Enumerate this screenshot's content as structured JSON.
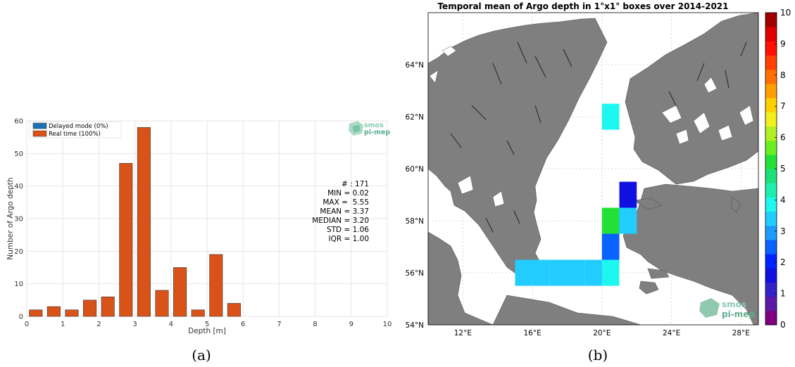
{
  "chart_data": [
    {
      "type": "bar",
      "panel_caption": "(a)",
      "xlabel": "Depth [m]",
      "ylabel": "Number of Argo depth",
      "xlim": [
        0,
        10
      ],
      "ylim": [
        0,
        60
      ],
      "x_ticks": [
        "0",
        "1",
        "2",
        "3",
        "4",
        "5",
        "6",
        "7",
        "8",
        "9",
        "10"
      ],
      "y_ticks": [
        "0",
        "10",
        "20",
        "30",
        "40",
        "50",
        "60"
      ],
      "grid": true,
      "bin_width": 0.5,
      "bin_centers": [
        0.25,
        0.75,
        1.25,
        1.75,
        2.25,
        2.75,
        3.25,
        3.75,
        4.25,
        4.75,
        5.25,
        5.75
      ],
      "series": [
        {
          "name": "Delayed mode (0%)",
          "color": "#1f6fb4",
          "values": [
            0,
            0,
            0,
            0,
            0,
            0,
            0,
            0,
            0,
            0,
            0,
            0
          ]
        },
        {
          "name": "Real time (100%)",
          "color": "#d95319",
          "values": [
            2,
            3,
            2,
            5,
            6,
            47,
            58,
            8,
            15,
            2,
            19,
            4
          ]
        }
      ],
      "legend_position": "top-left",
      "stats": [
        "# : 171",
        "MIN = 0.02",
        "MAX =  5.55",
        "MEAN = 3.37",
        "MEDIAN = 3.20",
        "STD = 1.06",
        "IQR = 1.00"
      ],
      "logo": [
        "smos",
        "pi-mep"
      ]
    },
    {
      "type": "heatmap",
      "panel_caption": "(b)",
      "title": "Temporal mean of Argo depth in 1°x1° boxes over 2014-2021",
      "lon_range": [
        10,
        29
      ],
      "lat_range": [
        54,
        66
      ],
      "lat_ticks": [
        {
          "v": 54,
          "label": "54°N"
        },
        {
          "v": 56,
          "label": "56°N"
        },
        {
          "v": 58,
          "label": "58°N"
        },
        {
          "v": 60,
          "label": "60°N"
        },
        {
          "v": 62,
          "label": "62°N"
        },
        {
          "v": 64,
          "label": "64°N"
        }
      ],
      "lon_ticks": [
        {
          "v": 12,
          "label": "12°E"
        },
        {
          "v": 16,
          "label": "16°E"
        },
        {
          "v": 20,
          "label": "20°E"
        },
        {
          "v": 24,
          "label": "24°E"
        },
        {
          "v": 28,
          "label": "28°E"
        }
      ],
      "colorbar": {
        "min": 0,
        "max": 10,
        "ticks": [
          "0",
          "1",
          "2",
          "3",
          "4",
          "5",
          "6",
          "7",
          "8",
          "9",
          "10"
        ],
        "colors": [
          "#800080",
          "#5c1aa6",
          "#3322c8",
          "#1010e0",
          "#0024ff",
          "#0a62ff",
          "#1e9bff",
          "#22ccff",
          "#1ef6f0",
          "#1eeeb0",
          "#1ee07a",
          "#22e038",
          "#6af022",
          "#b0f024",
          "#f0f020",
          "#ffd000",
          "#ffa000",
          "#ff7000",
          "#ff4000",
          "#ff1000",
          "#e00000",
          "#a00000"
        ]
      },
      "cells": [
        {
          "lon": 20.5,
          "lat": 62,
          "value": 3.9
        },
        {
          "lon": 21.5,
          "lat": 59,
          "value": 1.8
        },
        {
          "lon": 20.5,
          "lat": 58,
          "value": 5.2
        },
        {
          "lon": 21.5,
          "lat": 58,
          "value": 3.3
        },
        {
          "lon": 20.5,
          "lat": 57,
          "value": 2.6
        },
        {
          "lon": 15.5,
          "lat": 56,
          "value": 3.3
        },
        {
          "lon": 16.5,
          "lat": 56,
          "value": 3.3
        },
        {
          "lon": 17.5,
          "lat": 56,
          "value": 3.3
        },
        {
          "lon": 18.5,
          "lat": 56,
          "value": 3.3
        },
        {
          "lon": 19.5,
          "lat": 56,
          "value": 3.3
        },
        {
          "lon": 20.5,
          "lat": 56,
          "value": 3.9
        }
      ],
      "land_color": "#7f7f7f",
      "logo": [
        "smos",
        "pi-mep"
      ]
    }
  ]
}
